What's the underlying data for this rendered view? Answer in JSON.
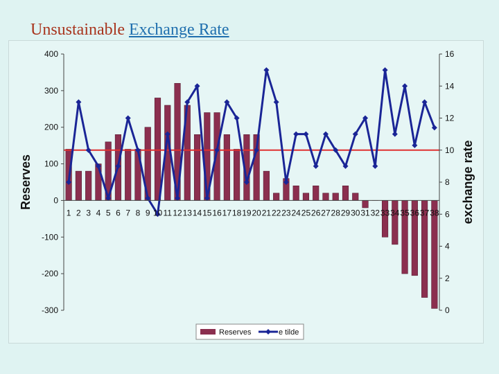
{
  "title": {
    "part1": "Unsustainable",
    "part2": "Exchange Rate"
  },
  "chart_data": {
    "type": "bar+line",
    "categories": [
      "1",
      "2",
      "3",
      "4",
      "5",
      "6",
      "7",
      "8",
      "9",
      "10",
      "11",
      "12",
      "13",
      "14",
      "15",
      "16",
      "17",
      "18",
      "19",
      "20",
      "21",
      "22",
      "23",
      "24",
      "25",
      "26",
      "27",
      "28",
      "29",
      "30",
      "31",
      "32",
      "33",
      "34",
      "35",
      "36",
      "37",
      "38"
    ],
    "series": [
      {
        "name": "Reserves",
        "type": "bar",
        "axis": "left",
        "color": "#8b2f4f",
        "values": [
          140,
          80,
          80,
          100,
          160,
          180,
          140,
          140,
          200,
          280,
          260,
          320,
          260,
          180,
          240,
          240,
          180,
          140,
          180,
          180,
          80,
          20,
          60,
          40,
          20,
          40,
          20,
          20,
          40,
          20,
          -20,
          0,
          -100,
          -120,
          -200,
          -205,
          -265,
          -295
        ]
      },
      {
        "name": "e tilde",
        "type": "line",
        "axis": "right",
        "color": "#1a2596",
        "values": [
          8,
          13,
          10,
          9,
          7,
          9,
          12,
          10,
          7,
          6,
          11,
          7,
          13,
          14,
          7,
          10,
          13,
          12,
          8,
          10,
          15,
          13,
          8,
          11,
          11,
          9,
          11,
          10,
          9,
          11,
          12,
          9,
          15,
          11,
          14,
          10.3,
          13,
          11.4
        ]
      }
    ],
    "reference_line": {
      "axis": "right",
      "value": 10,
      "color": "#e03030"
    },
    "ylabel": "Reserves",
    "ylabel_right": "exchange rate",
    "ylim": [
      -300,
      400
    ],
    "ylim_right": [
      0,
      16
    ],
    "yticks": [
      400,
      300,
      200,
      100,
      0,
      -100,
      -200,
      -300
    ],
    "yticks_right": [
      16,
      14,
      12,
      10,
      8,
      6,
      4,
      2,
      0
    ],
    "legend": [
      "Reserves",
      "e tilde"
    ],
    "legend_position": "bottom"
  }
}
